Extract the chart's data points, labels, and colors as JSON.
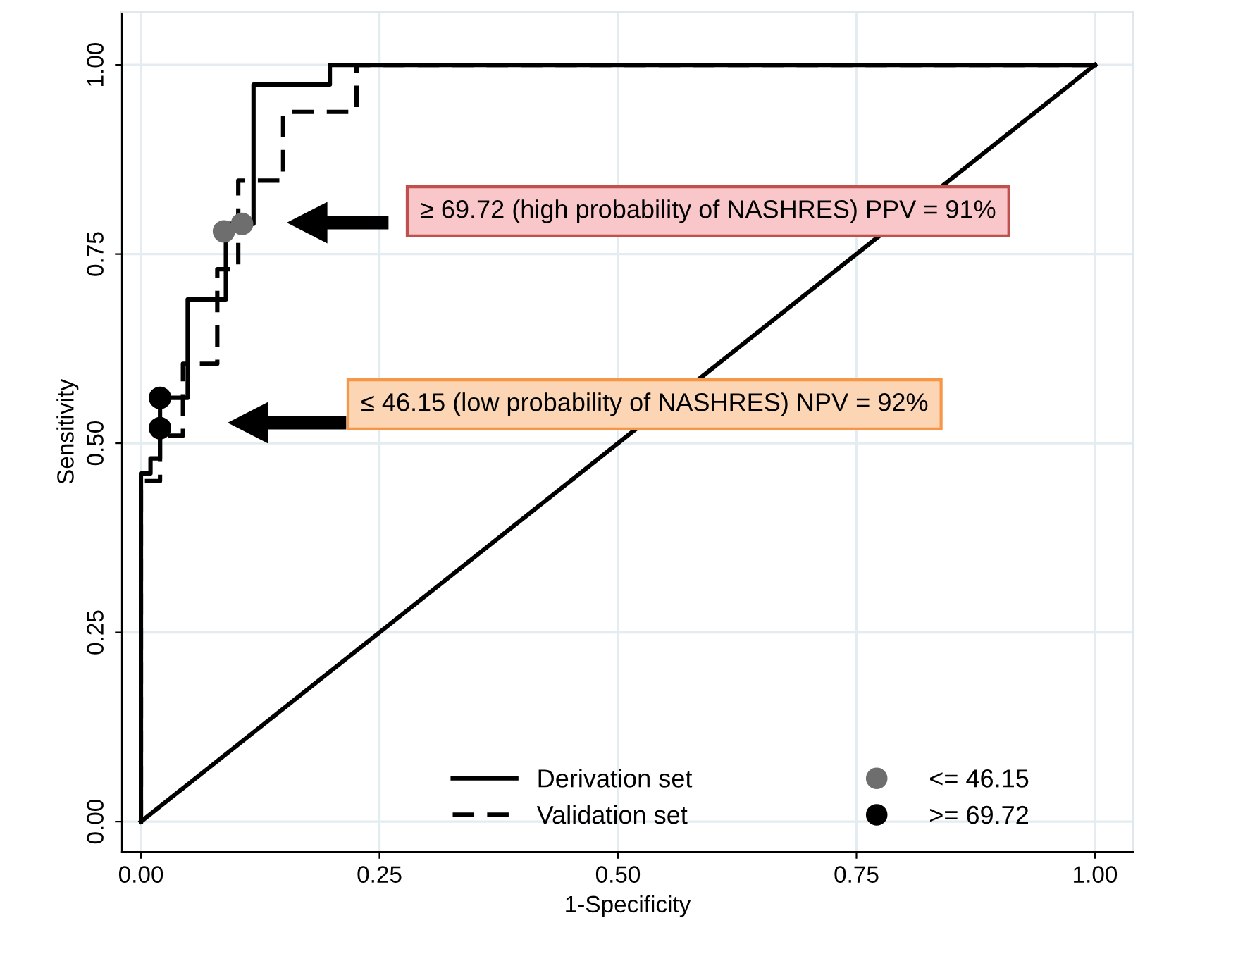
{
  "chart_data": {
    "type": "line",
    "xlabel": "1-Specificity",
    "ylabel": "Sensitivity",
    "xlim": [
      -0.02,
      1.04
    ],
    "ylim": [
      -0.04,
      1.07
    ],
    "xticks": [
      {
        "value": 0,
        "label": "0.00"
      },
      {
        "value": 0.25,
        "label": "0.25"
      },
      {
        "value": 0.5,
        "label": "0.50"
      },
      {
        "value": 0.75,
        "label": "0.75"
      },
      {
        "value": 1,
        "label": "1.00"
      }
    ],
    "yticks": [
      {
        "value": 0,
        "label": "0.00"
      },
      {
        "value": 0.25,
        "label": "0.25"
      },
      {
        "value": 0.5,
        "label": "0.50"
      },
      {
        "value": 0.75,
        "label": "0.75"
      },
      {
        "value": 1,
        "label": "1.00"
      }
    ],
    "grid": true,
    "legend": "bottom right",
    "series": [
      {
        "name": "Derivation set",
        "color": "#000000",
        "line_style": "solid",
        "marker": "none",
        "x": [
          0,
          0,
          0.01,
          0.01,
          0.02,
          0.02,
          0.049,
          0.049,
          0.089,
          0.089,
          0.118,
          0.118,
          0.198,
          0.198,
          1
        ],
        "values": [
          0,
          0.46,
          0.46,
          0.48,
          0.48,
          0.56,
          0.56,
          0.69,
          0.69,
          0.79,
          0.79,
          0.974,
          0.974,
          1.0,
          1.0
        ]
      },
      {
        "name": "Validation set",
        "color": "#000000",
        "line_style": "dashed",
        "marker": "none",
        "x": [
          0,
          0,
          0.02,
          0.02,
          0.044,
          0.044,
          0.08,
          0.08,
          0.102,
          0.102,
          0.149,
          0.149,
          0.226,
          0.226,
          1
        ],
        "values": [
          0,
          0.45,
          0.45,
          0.51,
          0.51,
          0.605,
          0.605,
          0.73,
          0.73,
          0.847,
          0.847,
          0.938,
          0.938,
          1.0,
          1.0
        ]
      },
      {
        "color": "#000000",
        "line_style": "solid",
        "marker": "none",
        "x": [
          0,
          1
        ],
        "values": [
          0,
          1
        ]
      },
      {
        "name": "<= 46.15",
        "type": "scatter",
        "color": "#6e6e6e",
        "marker": "circle",
        "x": [
          0.087,
          0.106
        ],
        "values": [
          0.78,
          0.79
        ]
      },
      {
        "name": ">= 69.72",
        "type": "scatter",
        "color": "#000000",
        "marker": "circle",
        "x": [
          0.02,
          0.02
        ],
        "values": [
          0.52,
          0.56
        ]
      }
    ],
    "annotations": [
      "≥ 69.72 (high probability of NASHRES) PPV = 91%",
      "≤ 46.15 (low probability of NASHRES) NPV = 92%"
    ]
  }
}
